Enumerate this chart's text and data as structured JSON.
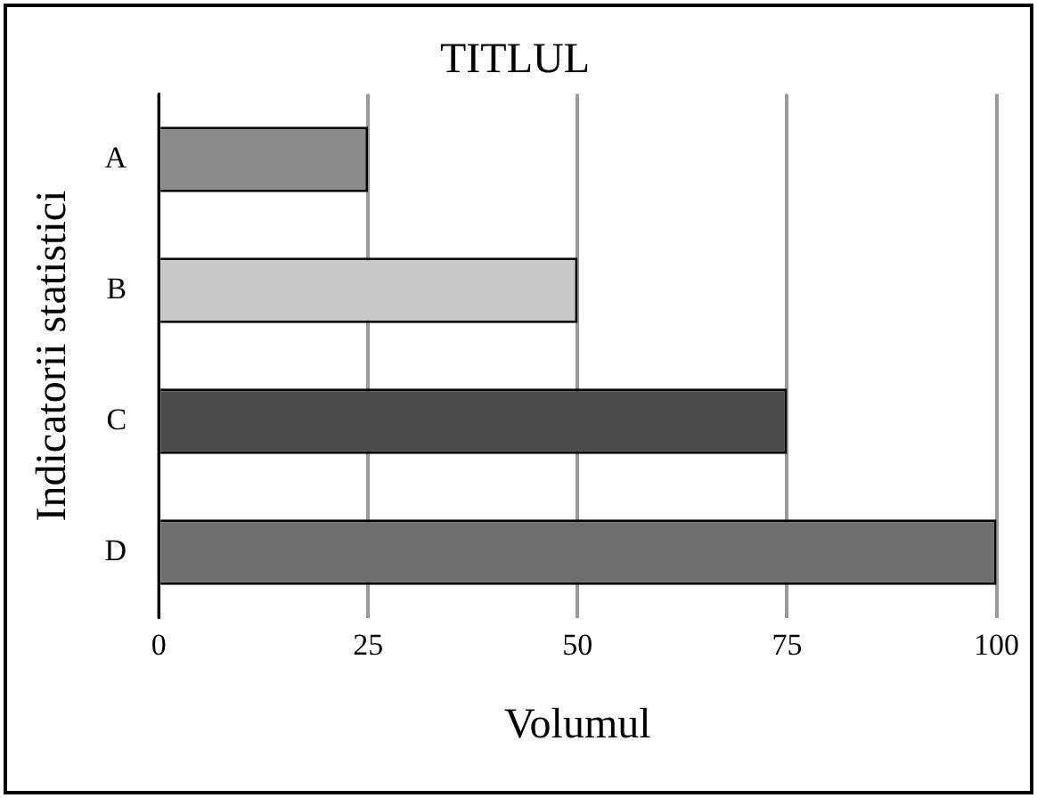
{
  "chart_data": {
    "type": "bar",
    "orientation": "horizontal",
    "title": "TITLUL",
    "xlabel": "Volumul",
    "ylabel": "Indicatorii statistici",
    "categories": [
      "A",
      "B",
      "C",
      "D"
    ],
    "values": [
      25,
      50,
      75,
      100
    ],
    "colors": [
      "#8a8a8a",
      "#c8c8c8",
      "#4a4a4a",
      "#6e6e6e"
    ],
    "xlim": [
      0,
      100
    ],
    "xticks": [
      0,
      25,
      50,
      75,
      100
    ],
    "grid": "x",
    "legend": false
  }
}
